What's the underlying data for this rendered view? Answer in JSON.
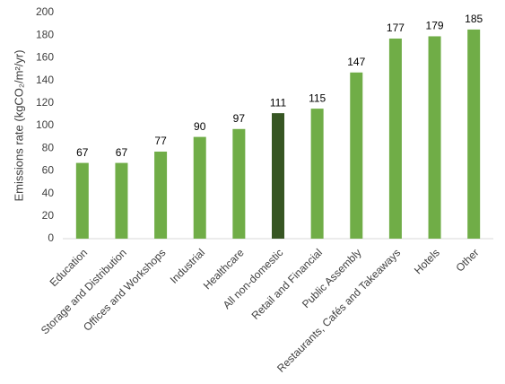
{
  "chart_data": {
    "type": "bar",
    "y_label": "Emissions rate (kgCO₂/m²/yr)",
    "categories": [
      "Education",
      "Storage and Distribution",
      "Offices and Workshops",
      "Industrial",
      "Healthcare",
      "All non-domestic",
      "Retail and Financial",
      "Public Assembly",
      "Restaurants, Cafés and Takeaways",
      "Hotels",
      "Other"
    ],
    "values": [
      67,
      67,
      77,
      90,
      97,
      111,
      115,
      147,
      177,
      179,
      185
    ],
    "colors": [
      "#70ad47",
      "#70ad47",
      "#70ad47",
      "#70ad47",
      "#70ad47",
      "#375623",
      "#70ad47",
      "#70ad47",
      "#70ad47",
      "#70ad47",
      "#70ad47"
    ],
    "ylim": [
      0,
      200
    ],
    "yticks": [
      0,
      20,
      40,
      60,
      80,
      100,
      120,
      140,
      160,
      180,
      200
    ],
    "grid": false
  }
}
